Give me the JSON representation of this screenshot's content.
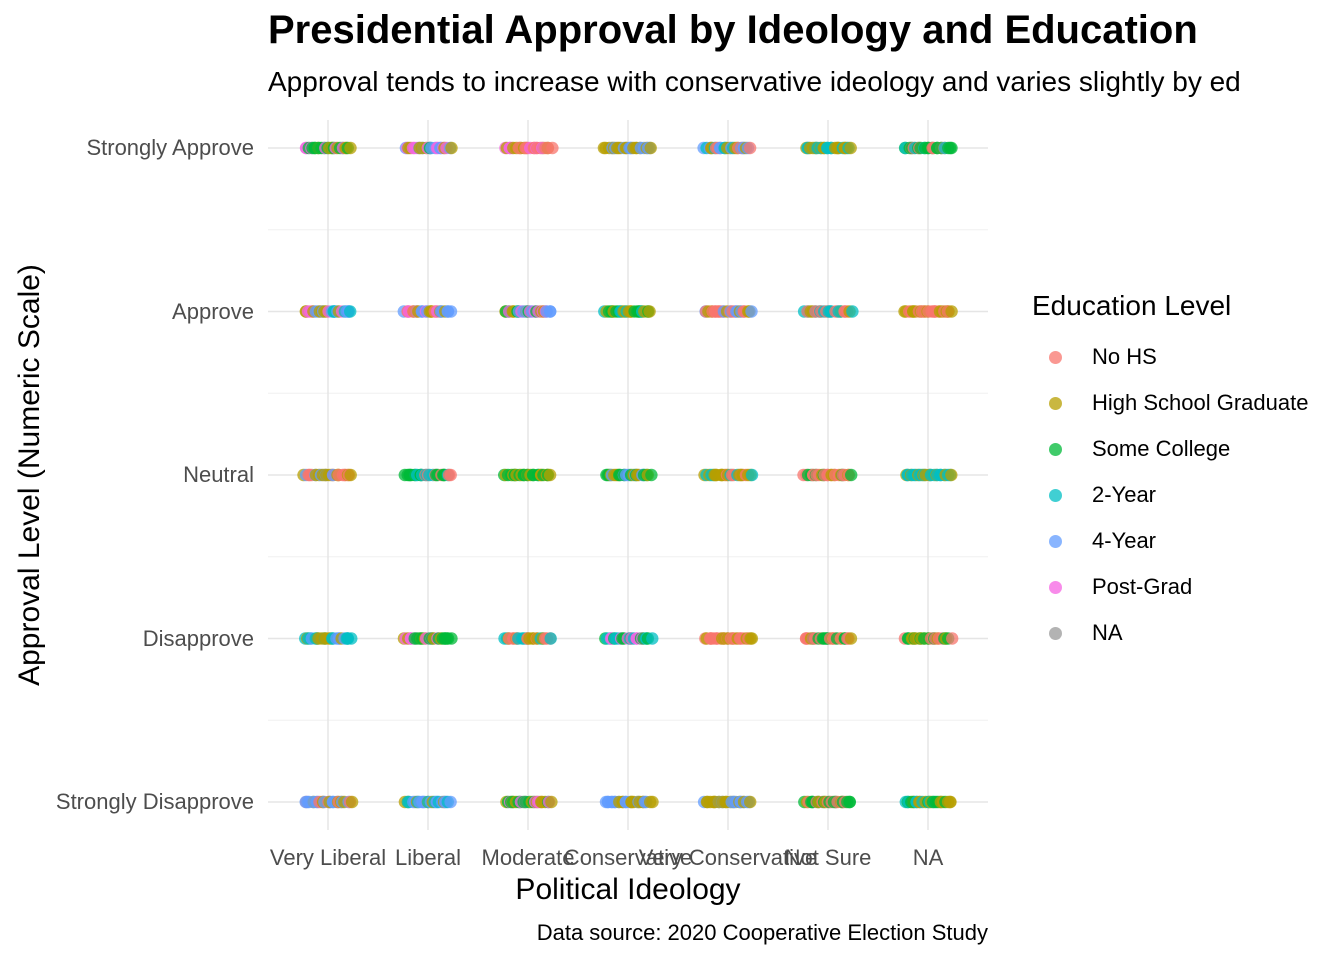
{
  "chart_data": {
    "type": "scatter",
    "title": "Presidential Approval by Ideology and Education",
    "subtitle": "Approval tends to increase with conservative ideology and varies slightly by ed",
    "xlabel": "Political Ideology",
    "ylabel": "Approval Level (Numeric Scale)",
    "caption": "Data source: 2020 Cooperative Election Study",
    "x_categories": [
      "Very Liberal",
      "Liberal",
      "Moderate",
      "Conservative",
      "Very Conservative",
      "Not Sure",
      "NA"
    ],
    "y_categories": [
      "Strongly Approve",
      "Approve",
      "Neutral",
      "Disapprove",
      "Strongly Disapprove"
    ],
    "grid": true,
    "legend": {
      "title": "Education Level",
      "position": "right",
      "entries": [
        {
          "name": "No HS",
          "color": "#F8766D"
        },
        {
          "name": "High School Graduate",
          "color": "#B79F00"
        },
        {
          "name": "Some College",
          "color": "#00BA38"
        },
        {
          "name": "2-Year",
          "color": "#00BFC4"
        },
        {
          "name": "4-Year",
          "color": "#619CFF"
        },
        {
          "name": "Post-Grad",
          "color": "#F564E3"
        },
        {
          "name": "NA",
          "color": "#999999"
        }
      ]
    },
    "jitter": "horizontal",
    "clusters": [
      {
        "x": "Very Liberal",
        "y": "Strongly Approve",
        "groups": [
          "Post-Grad",
          "High School Graduate",
          "Some College"
        ]
      },
      {
        "x": "Very Liberal",
        "y": "Approve",
        "groups": [
          "2-Year",
          "Post-Grad",
          "High School Graduate",
          "4-Year"
        ]
      },
      {
        "x": "Very Liberal",
        "y": "Neutral",
        "groups": [
          "High School Graduate",
          "4-Year",
          "No HS"
        ]
      },
      {
        "x": "Very Liberal",
        "y": "Disapprove",
        "groups": [
          "4-Year",
          "High School Graduate",
          "2-Year"
        ]
      },
      {
        "x": "Very Liberal",
        "y": "Strongly Disapprove",
        "groups": [
          "4-Year",
          "High School Graduate",
          "No HS"
        ]
      },
      {
        "x": "Liberal",
        "y": "Strongly Approve",
        "groups": [
          "Some College",
          "High School Graduate",
          "Post-Grad",
          "4-Year"
        ]
      },
      {
        "x": "Liberal",
        "y": "Approve",
        "groups": [
          "No HS",
          "Post-Grad",
          "High School Graduate",
          "4-Year"
        ]
      },
      {
        "x": "Liberal",
        "y": "Neutral",
        "groups": [
          "2-Year",
          "No HS",
          "Some College"
        ]
      },
      {
        "x": "Liberal",
        "y": "Disapprove",
        "groups": [
          "Post-Grad",
          "High School Graduate",
          "Some College"
        ]
      },
      {
        "x": "Liberal",
        "y": "Strongly Disapprove",
        "groups": [
          "2-Year",
          "4-Year",
          "High School Graduate"
        ]
      },
      {
        "x": "Moderate",
        "y": "Strongly Approve",
        "groups": [
          "Post-Grad",
          "High School Graduate",
          "No HS"
        ]
      },
      {
        "x": "Moderate",
        "y": "Approve",
        "groups": [
          "4-Year",
          "Post-Grad",
          "Some College",
          "High School Graduate"
        ]
      },
      {
        "x": "Moderate",
        "y": "Neutral",
        "groups": [
          "High School Graduate",
          "Some College"
        ]
      },
      {
        "x": "Moderate",
        "y": "Disapprove",
        "groups": [
          "High School Graduate",
          "No HS",
          "2-Year"
        ]
      },
      {
        "x": "Moderate",
        "y": "Strongly Disapprove",
        "groups": [
          "Post-Grad",
          "High School Graduate",
          "Some College"
        ]
      },
      {
        "x": "Conservative",
        "y": "Strongly Approve",
        "groups": [
          "High School Graduate",
          "4-Year"
        ]
      },
      {
        "x": "Conservative",
        "y": "Approve",
        "groups": [
          "High School Graduate",
          "2-Year",
          "Some College"
        ]
      },
      {
        "x": "Conservative",
        "y": "Neutral",
        "groups": [
          "4-Year",
          "High School Graduate",
          "Some College"
        ]
      },
      {
        "x": "Conservative",
        "y": "Disapprove",
        "groups": [
          "Some College",
          "2-Year",
          "Post-Grad"
        ]
      },
      {
        "x": "Conservative",
        "y": "Strongly Disapprove",
        "groups": [
          "High School Graduate",
          "4-Year"
        ]
      },
      {
        "x": "Very Conservative",
        "y": "Strongly Approve",
        "groups": [
          "No HS",
          "4-Year",
          "High School Graduate",
          "2-Year"
        ]
      },
      {
        "x": "Very Conservative",
        "y": "Approve",
        "groups": [
          "High School Graduate",
          "4-Year",
          "No HS"
        ]
      },
      {
        "x": "Very Conservative",
        "y": "Neutral",
        "groups": [
          "2-Year",
          "High School Graduate",
          "No HS"
        ]
      },
      {
        "x": "Very Conservative",
        "y": "Disapprove",
        "groups": [
          "High School Graduate",
          "No HS"
        ]
      },
      {
        "x": "Very Conservative",
        "y": "Strongly Disapprove",
        "groups": [
          "4-Year",
          "High School Graduate"
        ]
      },
      {
        "x": "Not Sure",
        "y": "Strongly Approve",
        "groups": [
          "High School Graduate",
          "2-Year"
        ]
      },
      {
        "x": "Not Sure",
        "y": "Approve",
        "groups": [
          "2-Year",
          "High School Graduate",
          "No HS"
        ]
      },
      {
        "x": "Not Sure",
        "y": "Neutral",
        "groups": [
          "No HS",
          "High School Graduate",
          "Some College"
        ]
      },
      {
        "x": "Not Sure",
        "y": "Disapprove",
        "groups": [
          "No HS",
          "High School Graduate",
          "Some College"
        ]
      },
      {
        "x": "Not Sure",
        "y": "Strongly Disapprove",
        "groups": [
          "Some College",
          "High School Graduate",
          "No HS"
        ]
      },
      {
        "x": "NA",
        "y": "Strongly Approve",
        "groups": [
          "2-Year",
          "Some College",
          "No HS"
        ]
      },
      {
        "x": "NA",
        "y": "Approve",
        "groups": [
          "No HS",
          "High School Graduate"
        ]
      },
      {
        "x": "NA",
        "y": "Neutral",
        "groups": [
          "High School Graduate",
          "2-Year"
        ]
      },
      {
        "x": "NA",
        "y": "Disapprove",
        "groups": [
          "Some College",
          "No HS",
          "High School Graduate"
        ]
      },
      {
        "x": "NA",
        "y": "Strongly Disapprove",
        "groups": [
          "High School Graduate",
          "Some College",
          "2-Year"
        ]
      }
    ]
  }
}
